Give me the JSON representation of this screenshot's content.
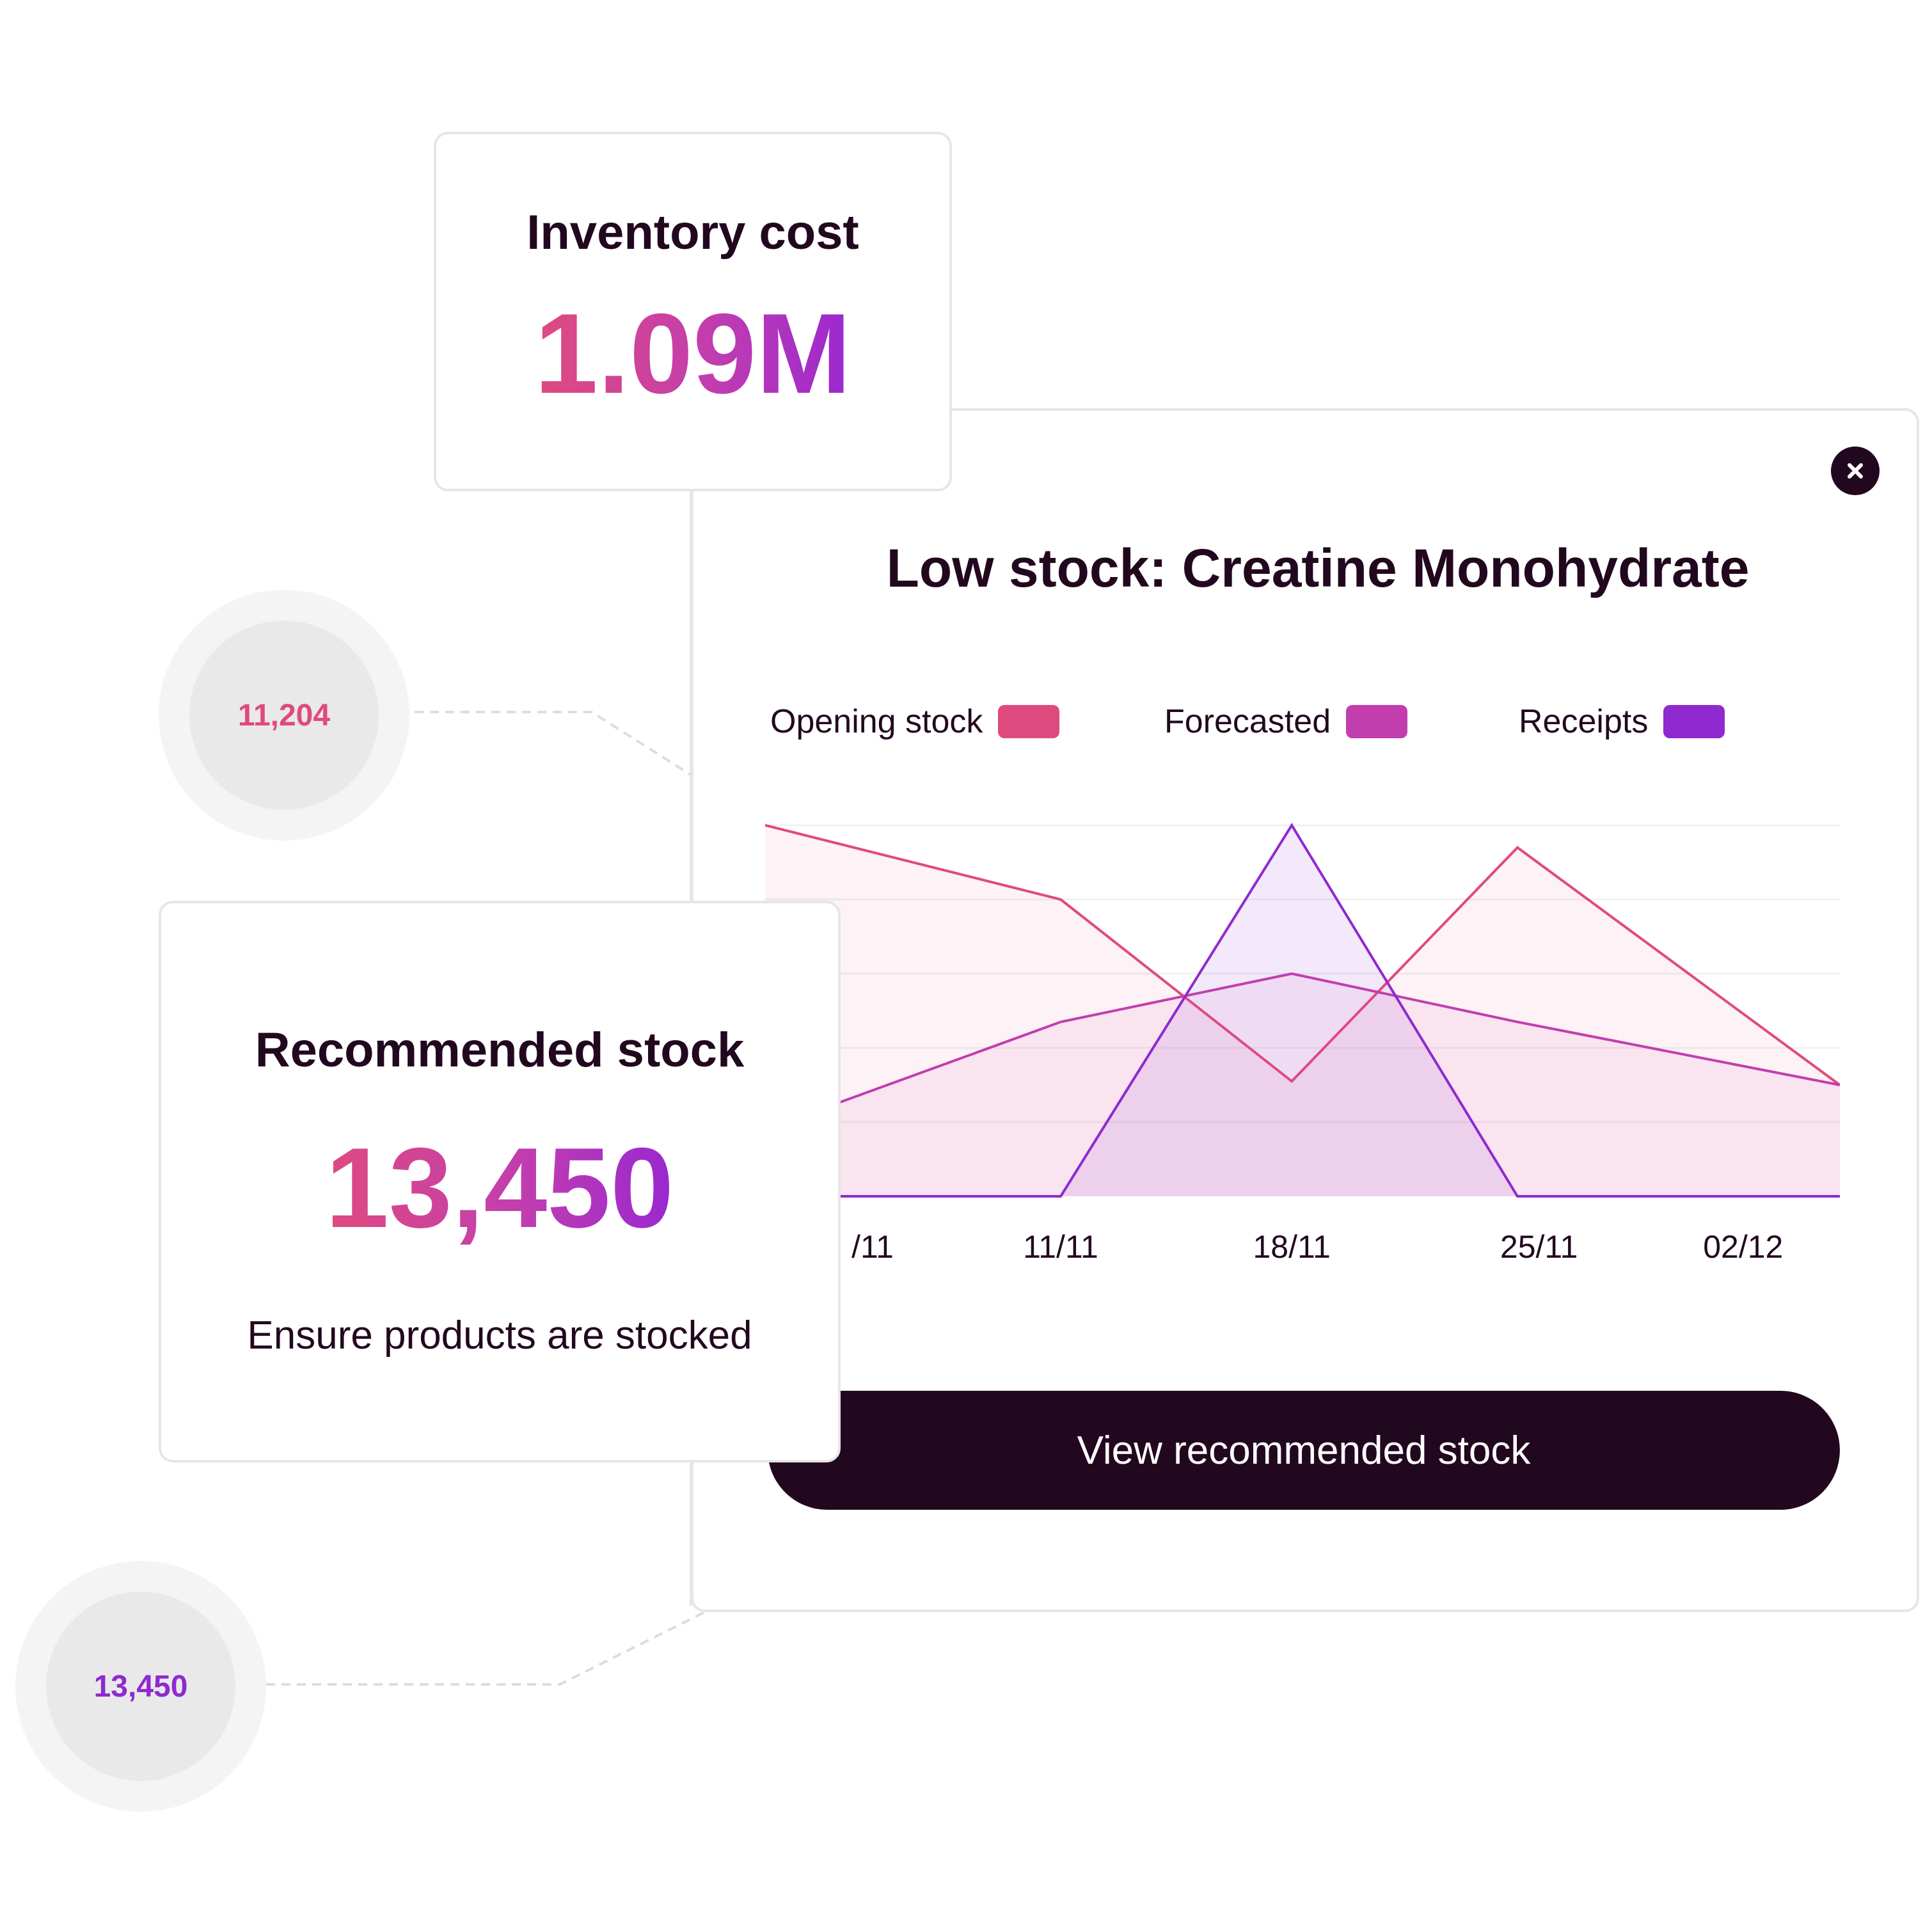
{
  "inventory_card": {
    "title": "Inventory cost",
    "value": "1.09M"
  },
  "low_stock_panel": {
    "title": "Low stock: Creatine Monohydrate",
    "close_icon": "close-icon",
    "button_label": "View recommended stock"
  },
  "recommended_card": {
    "title": "Recommended stock",
    "value": "13,450",
    "subtitle": "Ensure products are stocked"
  },
  "bubbles": [
    {
      "value": "11,204",
      "color": "#df4a7e"
    },
    {
      "value": "13,450",
      "color": "#8e2ad0"
    }
  ],
  "chart_data": {
    "type": "area",
    "title": "",
    "xlabel": "",
    "ylabel": "",
    "x_tick_labels": [
      "/11",
      "11/11",
      "18/11",
      "25/11",
      "02/12"
    ],
    "x_tick_positions": [
      0.1,
      0.275,
      0.49,
      0.72,
      0.91
    ],
    "x": [
      0,
      0.275,
      0.49,
      0.7,
      1.0
    ],
    "ylim": [
      0,
      100
    ],
    "grid": true,
    "legend_position": "top",
    "series": [
      {
        "name": "Opening stock",
        "color": "#df4a7e",
        "values": [
          100,
          80,
          31,
          94,
          30
        ]
      },
      {
        "name": "Forecasted",
        "color": "#c23eae",
        "values": [
          18,
          47,
          60,
          47,
          30
        ]
      },
      {
        "name": "Receipts",
        "color": "#8e2ad0",
        "values": [
          0,
          0,
          100,
          0,
          0
        ]
      }
    ]
  }
}
